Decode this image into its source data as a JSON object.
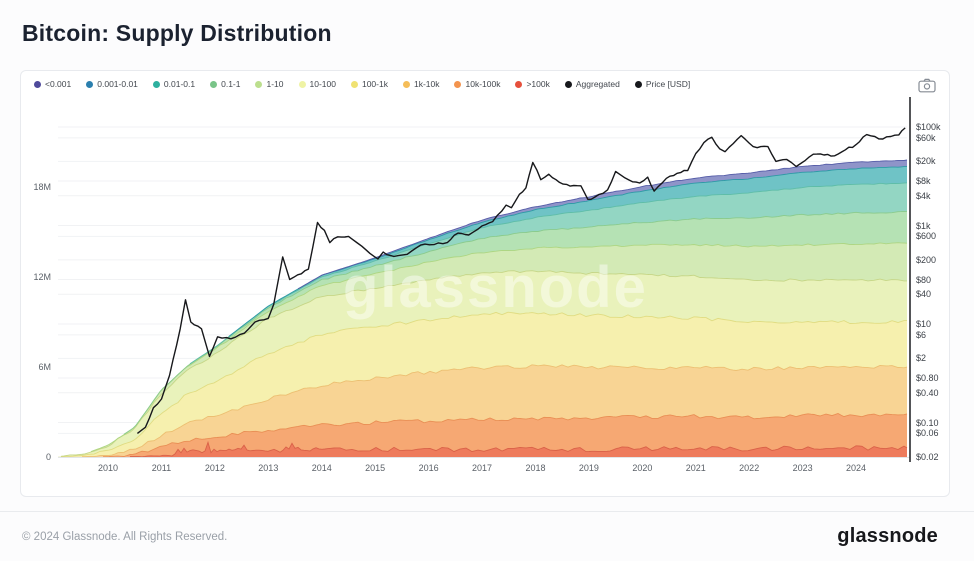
{
  "page": {
    "title": "Bitcoin: Supply Distribution"
  },
  "watermark": {
    "text": "glassnode"
  },
  "footer": {
    "copyright": "© 2024 Glassnode. All Rights Reserved.",
    "brand": "glassnode"
  },
  "toolbar": {
    "camera_icon": "camera-icon"
  },
  "chart_data": {
    "type": "area",
    "stacked": true,
    "title": "Bitcoin: Supply Distribution",
    "grid": "horizontal-faint",
    "legend_position": "top",
    "legend": [
      {
        "label": "<0.001",
        "color": "#4f4a9b"
      },
      {
        "label": "0.001-0.01",
        "color": "#2b7fae"
      },
      {
        "label": "0.01-0.1",
        "color": "#2eb09f"
      },
      {
        "label": "0.1-1",
        "color": "#79c488"
      },
      {
        "label": "1-10",
        "color": "#bcdf8e"
      },
      {
        "label": "10-100",
        "color": "#eff3a4"
      },
      {
        "label": "100-1k",
        "color": "#f0e272"
      },
      {
        "label": "1k-10k",
        "color": "#f5bd58"
      },
      {
        "label": "10k-100k",
        "color": "#f3944e"
      },
      {
        "label": ">100k",
        "color": "#e6503c"
      },
      {
        "label": "Aggregated",
        "color": "#17181c"
      },
      {
        "label": "Price [USD]",
        "color": "#17181c"
      }
    ],
    "x_years": [
      2009.05,
      2009.6,
      2010.0,
      2010.5,
      2011.0,
      2011.5,
      2012.0,
      2013.0,
      2014.0,
      2015.0,
      2016.0,
      2017.0,
      2018.0,
      2019.0,
      2020.0,
      2021.0,
      2022.0,
      2023.0,
      2024.0,
      2024.95
    ],
    "unit": "M BTC",
    "series": [
      {
        "name": ">100k",
        "fill": "#ee7b5c",
        "stroke": "#d96248",
        "values": [
          0,
          0,
          0,
          0.02,
          0.15,
          0.3,
          0.35,
          0.45,
          0.45,
          0.5,
          0.5,
          0.5,
          0.5,
          0.5,
          0.55,
          0.55,
          0.55,
          0.6,
          0.6,
          0.6
        ]
      },
      {
        "name": "10k-100k",
        "fill": "#f6a873",
        "stroke": "#e98f55",
        "values": [
          0,
          0,
          0.02,
          0.1,
          0.5,
          0.8,
          0.95,
          1.35,
          1.65,
          1.8,
          1.9,
          2.0,
          2.05,
          2.1,
          2.1,
          2.15,
          2.1,
          2.15,
          2.2,
          2.2
        ]
      },
      {
        "name": "1k-10k",
        "fill": "#f8d494",
        "stroke": "#ecbf72",
        "values": [
          0,
          0.02,
          0.1,
          0.35,
          0.8,
          1.15,
          1.45,
          2.05,
          2.7,
          2.95,
          3.25,
          3.45,
          3.5,
          3.4,
          3.3,
          3.25,
          3.2,
          3.2,
          3.2,
          3.2
        ]
      },
      {
        "name": "100-1k",
        "fill": "#f6f0ae",
        "stroke": "#e0dc82",
        "values": [
          0.01,
          0.1,
          0.3,
          0.7,
          1.5,
          1.95,
          2.25,
          3.05,
          3.4,
          3.45,
          3.5,
          3.6,
          3.55,
          3.45,
          3.4,
          3.3,
          3.15,
          3.05,
          3.0,
          3.0
        ]
      },
      {
        "name": "10-100",
        "fill": "#e9f2bb",
        "stroke": "#c6d687",
        "values": [
          0.01,
          0.12,
          0.33,
          0.73,
          1.3,
          1.62,
          1.85,
          2.35,
          2.5,
          2.58,
          2.68,
          2.75,
          2.78,
          2.8,
          2.82,
          2.8,
          2.8,
          2.8,
          2.8,
          2.8
        ]
      },
      {
        "name": "1-10",
        "fill": "#d3eab5",
        "stroke": "#aed683",
        "values": [
          0,
          0.01,
          0.04,
          0.08,
          0.2,
          0.25,
          0.32,
          0.48,
          0.72,
          0.95,
          1.15,
          1.35,
          1.55,
          1.75,
          1.95,
          2.1,
          2.25,
          2.35,
          2.4,
          2.47
        ]
      },
      {
        "name": "0.1-1",
        "fill": "#b5e2b4",
        "stroke": "#8bcb8d",
        "values": [
          0,
          0,
          0.01,
          0.02,
          0.04,
          0.05,
          0.1,
          0.22,
          0.38,
          0.52,
          0.72,
          0.92,
          1.12,
          1.32,
          1.52,
          1.72,
          1.88,
          2.0,
          2.07,
          2.07
        ]
      },
      {
        "name": "0.01-0.1",
        "fill": "#93d6c3",
        "stroke": "#5fbda8",
        "values": [
          0,
          0,
          0,
          0.005,
          0.01,
          0.015,
          0.04,
          0.09,
          0.2,
          0.32,
          0.52,
          0.72,
          0.92,
          1.12,
          1.32,
          1.52,
          1.67,
          1.82,
          1.9,
          1.93
        ]
      },
      {
        "name": "0.001-0.01",
        "fill": "#6fc3c6",
        "stroke": "#2f9aa6",
        "values": [
          0,
          0,
          0,
          0,
          0,
          0.005,
          0.01,
          0.03,
          0.1,
          0.16,
          0.26,
          0.37,
          0.52,
          0.66,
          0.77,
          0.87,
          0.96,
          1.01,
          1.06,
          1.1
        ]
      },
      {
        "name": "<0.001",
        "fill": "#8f94c9",
        "stroke": "#565da8",
        "values": [
          0,
          0,
          0,
          0,
          0,
          0,
          0,
          0.01,
          0.02,
          0.05,
          0.1,
          0.15,
          0.2,
          0.25,
          0.3,
          0.35,
          0.38,
          0.4,
          0.42,
          0.43
        ]
      }
    ],
    "price_line": {
      "name": "Price [USD]",
      "color": "#17181b",
      "axis": "right-log",
      "points": [
        [
          2010.55,
          0.06
        ],
        [
          2010.7,
          0.08
        ],
        [
          2010.85,
          0.2
        ],
        [
          2011.0,
          0.3
        ],
        [
          2011.15,
          0.9
        ],
        [
          2011.35,
          8
        ],
        [
          2011.45,
          31
        ],
        [
          2011.55,
          11
        ],
        [
          2011.75,
          8
        ],
        [
          2011.9,
          2.2
        ],
        [
          2012.05,
          5.5
        ],
        [
          2012.3,
          5
        ],
        [
          2012.55,
          6.5
        ],
        [
          2012.75,
          11
        ],
        [
          2013.0,
          13
        ],
        [
          2013.1,
          25
        ],
        [
          2013.27,
          230
        ],
        [
          2013.4,
          80
        ],
        [
          2013.55,
          100
        ],
        [
          2013.75,
          130
        ],
        [
          2013.92,
          1150
        ],
        [
          2014.05,
          800
        ],
        [
          2014.15,
          450
        ],
        [
          2014.3,
          590
        ],
        [
          2014.5,
          600
        ],
        [
          2014.75,
          380
        ],
        [
          2015.05,
          210
        ],
        [
          2015.15,
          290
        ],
        [
          2015.35,
          235
        ],
        [
          2015.6,
          260
        ],
        [
          2015.85,
          400
        ],
        [
          2016.1,
          410
        ],
        [
          2016.35,
          450
        ],
        [
          2016.55,
          700
        ],
        [
          2016.75,
          640
        ],
        [
          2017.0,
          980
        ],
        [
          2017.2,
          1200
        ],
        [
          2017.45,
          2600
        ],
        [
          2017.55,
          2300
        ],
        [
          2017.7,
          4300
        ],
        [
          2017.82,
          5800
        ],
        [
          2017.95,
          19000
        ],
        [
          2018.1,
          8500
        ],
        [
          2018.25,
          11000
        ],
        [
          2018.45,
          7500
        ],
        [
          2018.65,
          6300
        ],
        [
          2018.85,
          6400
        ],
        [
          2018.98,
          3400
        ],
        [
          2019.1,
          3700
        ],
        [
          2019.35,
          5300
        ],
        [
          2019.5,
          12500
        ],
        [
          2019.6,
          10500
        ],
        [
          2019.75,
          8400
        ],
        [
          2019.95,
          7300
        ],
        [
          2020.1,
          9600
        ],
        [
          2020.22,
          5000
        ],
        [
          2020.45,
          9100
        ],
        [
          2020.65,
          11500
        ],
        [
          2020.85,
          13000
        ],
        [
          2021.0,
          29000
        ],
        [
          2021.15,
          48000
        ],
        [
          2021.3,
          62000
        ],
        [
          2021.45,
          36000
        ],
        [
          2021.55,
          31500
        ],
        [
          2021.7,
          46000
        ],
        [
          2021.85,
          67000
        ],
        [
          2022.0,
          47000
        ],
        [
          2022.15,
          38000
        ],
        [
          2022.35,
          40000
        ],
        [
          2022.5,
          20000
        ],
        [
          2022.7,
          22000
        ],
        [
          2022.88,
          15800
        ],
        [
          2023.05,
          21000
        ],
        [
          2023.2,
          28000
        ],
        [
          2023.4,
          27000
        ],
        [
          2023.6,
          26000
        ],
        [
          2023.8,
          34500
        ],
        [
          2024.0,
          44000
        ],
        [
          2024.2,
          70000
        ],
        [
          2024.35,
          64000
        ],
        [
          2024.5,
          57000
        ],
        [
          2024.65,
          64000
        ],
        [
          2024.8,
          69000
        ],
        [
          2024.92,
          96000
        ]
      ]
    },
    "axes": {
      "left": {
        "ticks": [
          {
            "label": "18M",
            "value": 18
          },
          {
            "label": "12M",
            "value": 12
          },
          {
            "label": "6M",
            "value": 6
          },
          {
            "label": "0",
            "value": 0
          }
        ]
      },
      "right": {
        "scale": "log",
        "ticks": [
          {
            "label": "$100k",
            "value": 100000
          },
          {
            "label": "$60k",
            "value": 60000
          },
          {
            "label": "$20k",
            "value": 20000
          },
          {
            "label": "$8k",
            "value": 8000
          },
          {
            "label": "$4k",
            "value": 4000
          },
          {
            "label": "$1k",
            "value": 1000
          },
          {
            "label": "$600",
            "value": 600
          },
          {
            "label": "$200",
            "value": 200
          },
          {
            "label": "$80",
            "value": 80
          },
          {
            "label": "$40",
            "value": 40
          },
          {
            "label": "$10",
            "value": 10
          },
          {
            "label": "$6",
            "value": 6
          },
          {
            "label": "$2",
            "value": 2
          },
          {
            "label": "$0.80",
            "value": 0.8
          },
          {
            "label": "$0.40",
            "value": 0.4
          },
          {
            "label": "$0.10",
            "value": 0.1
          },
          {
            "label": "$0.06",
            "value": 0.06
          },
          {
            "label": "$0.02",
            "value": 0.02
          }
        ]
      },
      "x": {
        "ticks": [
          {
            "label": "2010",
            "value": 2010
          },
          {
            "label": "2011",
            "value": 2011
          },
          {
            "label": "2012",
            "value": 2012
          },
          {
            "label": "2013",
            "value": 2013
          },
          {
            "label": "2014",
            "value": 2014
          },
          {
            "label": "2015",
            "value": 2015
          },
          {
            "label": "2016",
            "value": 2016
          },
          {
            "label": "2017",
            "value": 2017
          },
          {
            "label": "2018",
            "value": 2018
          },
          {
            "label": "2019",
            "value": 2019
          },
          {
            "label": "2020",
            "value": 2020
          },
          {
            "label": "2021",
            "value": 2021
          },
          {
            "label": "2022",
            "value": 2022
          },
          {
            "label": "2023",
            "value": 2023
          },
          {
            "label": "2024",
            "value": 2024
          }
        ]
      }
    }
  }
}
